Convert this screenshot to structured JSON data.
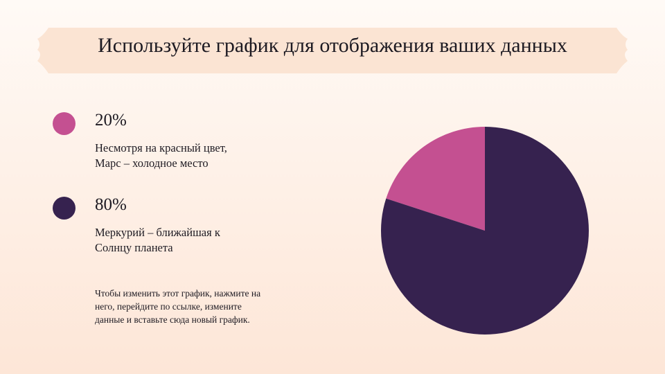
{
  "chart_data": {
    "type": "pie",
    "title": "Используйте график для отображения ваших данных",
    "categories": [
      "Несмотря на красный цвет, Марс – холодное место",
      "Меркурий – ближайшая к Солнцу планета"
    ],
    "values": [
      20,
      80
    ],
    "value_labels": [
      "20%",
      "80%"
    ],
    "colors": [
      "#c45091",
      "#36224f"
    ],
    "annotation": "Чтобы изменить этот график, нажмите на него, перейдите по ссылке, измените данные и вставьте сюда новый график."
  }
}
